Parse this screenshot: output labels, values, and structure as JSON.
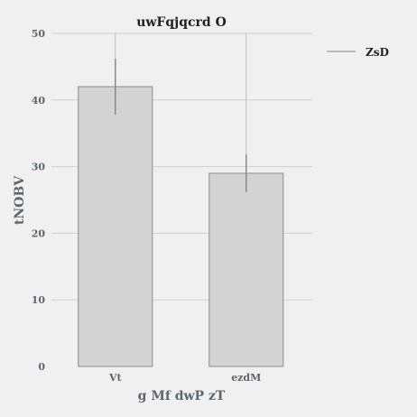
{
  "chart_data": {
    "type": "bar",
    "title": "uwFqjqcrd O",
    "xlabel": "g Mf dwP zT",
    "ylabel": "tNOBV",
    "categories": [
      "Vt",
      "ezdM"
    ],
    "series": [
      {
        "name": "ZsD",
        "values": [
          42,
          29
        ],
        "error_low": [
          37.8,
          26.2
        ],
        "error_high": [
          46.2,
          31.8
        ],
        "whisker_low": [
          0,
          0
        ],
        "whisker_high": [
          50,
          50
        ]
      }
    ],
    "ylim": [
      0,
      50
    ],
    "yticks": [
      0,
      10,
      20,
      30,
      40,
      50
    ],
    "grid": true,
    "legend_position": "top-right",
    "colors": {
      "bar_fill": "#d3d3d3",
      "bar_stroke": "#9a9a9a",
      "grid": "#cfcfcf",
      "error": "#8a8a8a",
      "whisker": "#bdbdbd",
      "legend_line": "#a8a8a8"
    }
  }
}
